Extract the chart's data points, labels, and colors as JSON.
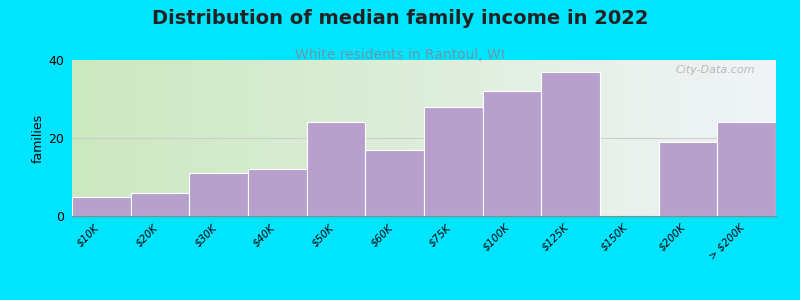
{
  "title": "Distribution of median family income in 2022",
  "subtitle": "White residents in Rantoul, WI",
  "ylabel": "families",
  "categories": [
    "$10K",
    "$20K",
    "$30K",
    "$40K",
    "$50K",
    "$60K",
    "$75K",
    "$100K",
    "$125K",
    "$150K",
    "$200K",
    "> $200K"
  ],
  "values": [
    5,
    6,
    11,
    12,
    24,
    17,
    28,
    32,
    37,
    0,
    19,
    24
  ],
  "bar_color": "#b8a0cc",
  "bar_edge_color": "#ffffff",
  "background_color": "#00e5ff",
  "plot_bg_left": "#cce8c0",
  "plot_bg_right": "#f0f4f8",
  "title_fontsize": 14,
  "title_color": "#222222",
  "subtitle_color": "#6699aa",
  "subtitle_fontsize": 10,
  "ylim": [
    0,
    40
  ],
  "yticks": [
    0,
    20,
    40
  ],
  "watermark_text": "City-Data.com",
  "watermark_color": "#aaaaaa",
  "gridline_color": "#cccccc"
}
